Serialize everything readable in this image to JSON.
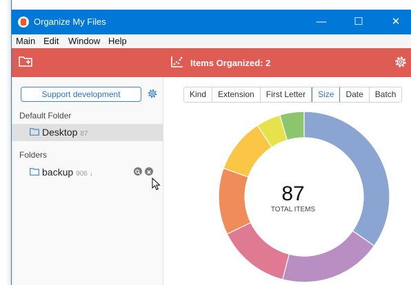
{
  "window": {
    "title": "Organize My Files",
    "controls": {
      "minimize": "—",
      "maximize": "☐",
      "close": "✕"
    }
  },
  "menu": [
    "Main",
    "Edit",
    "Window",
    "Help"
  ],
  "toolbar": {
    "items_organized": "Items Organized: 2"
  },
  "sidebar": {
    "support_label": "Support development",
    "default_folder_heading": "Default Folder",
    "default_folder": {
      "name": "Desktop",
      "count": "87"
    },
    "folders_heading": "Folders",
    "folders": [
      {
        "name": "backup",
        "count": "906 ↓"
      }
    ]
  },
  "tabs": [
    "Kind",
    "Extension",
    "First Letter",
    "Size",
    "Date",
    "Batch"
  ],
  "active_tab": "Size",
  "chart_data": {
    "type": "pie",
    "style": "donut",
    "total": 87,
    "total_caption": "TOTAL ITEMS",
    "slices": [
      {
        "color": "#8aa5d2",
        "value": 0.325
      },
      {
        "color": "#b98ec2",
        "value": 0.181
      },
      {
        "color": "#e07a93",
        "value": 0.129
      },
      {
        "color": "#f08b5a",
        "value": 0.118
      },
      {
        "color": "#fbc545",
        "value": 0.097
      },
      {
        "color": "#e6e24a",
        "value": 0.043
      },
      {
        "color": "#8dc56f",
        "value": 0.043
      }
    ],
    "start": "top",
    "direction": "clockwise"
  },
  "colors": {
    "titlebar": "#0078d7",
    "toolbar": "#df5c54",
    "accent": "#3a86d6"
  }
}
